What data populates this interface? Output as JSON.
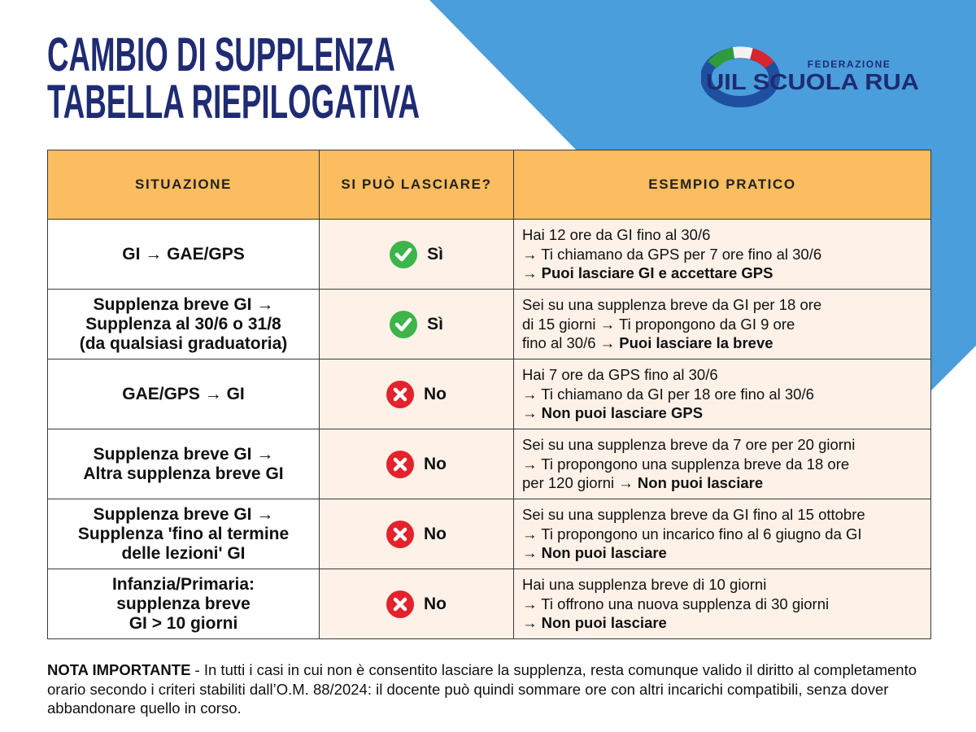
{
  "header": {
    "title": [
      "CAMBIO DI SUPPLENZA",
      "TABELLA RIEPILOGATIVA"
    ],
    "logo": {
      "top": "FEDERAZIONE",
      "name": "UIL SCUOLA RUA"
    }
  },
  "table": {
    "columns": [
      "SITUAZIONE",
      "SI PUÒ LASCIARE?",
      "ESEMPIO PRATICO"
    ],
    "rows": [
      {
        "situation": [
          "GI → GAE/GPS"
        ],
        "allowed": true,
        "answer": "Sì",
        "example": [
          {
            "text": "Hai 12 ore da GI fino al 30/6"
          },
          {
            "text": "→ Ti chiamano da GPS per 7 ore fino al 30/6"
          },
          {
            "text": "→ ",
            "strong": "Puoi lasciare GI e accettare GPS"
          }
        ]
      },
      {
        "situation": [
          "Supplenza breve GI →",
          "Supplenza al 30/6 o 31/8",
          "(da qualsiasi graduatoria)"
        ],
        "allowed": true,
        "answer": "Sì",
        "example": [
          {
            "text": "Sei su una supplenza breve da GI per 18 ore"
          },
          {
            "text": "di 15 giorni → Ti propongono da GI 9 ore"
          },
          {
            "text": "fino al 30/6 → ",
            "strong": "Puoi lasciare la breve"
          }
        ]
      },
      {
        "situation": [
          "GAE/GPS → GI"
        ],
        "allowed": false,
        "answer": "No",
        "example": [
          {
            "text": "Hai 7 ore da GPS fino al 30/6"
          },
          {
            "text": "→ Ti chiamano da GI per 18 ore fino al 30/6"
          },
          {
            "text": "→ ",
            "strong": "Non puoi lasciare GPS"
          }
        ]
      },
      {
        "situation": [
          "Supplenza breve GI →",
          "Altra supplenza breve GI"
        ],
        "allowed": false,
        "answer": "No",
        "example": [
          {
            "text": "Sei su una supplenza breve da 7 ore per 20 giorni"
          },
          {
            "text": "→ Ti propongono una supplenza breve da 18 ore"
          },
          {
            "text": "per 120 giorni → ",
            "strong": "Non puoi lasciare"
          }
        ]
      },
      {
        "situation": [
          "Supplenza breve GI →",
          "Supplenza 'fino al termine",
          "delle lezioni' GI"
        ],
        "allowed": false,
        "answer": "No",
        "example": [
          {
            "text": "Sei su una supplenza breve da GI fino al 15 ottobre"
          },
          {
            "text": "→ Ti propongono un incarico fino al 6 giugno da GI"
          },
          {
            "text": "→ ",
            "strong": "Non puoi lasciare"
          }
        ]
      },
      {
        "situation": [
          "Infanzia/Primaria:",
          "supplenza breve",
          "GI > 10 giorni"
        ],
        "allowed": false,
        "answer": "No",
        "example": [
          {
            "text": "Hai una supplenza breve di 10 giorni"
          },
          {
            "text": "→ Ti offrono una nuova supplenza di 30 giorni"
          },
          {
            "text": "→ ",
            "strong": "Non puoi lasciare"
          }
        ]
      }
    ]
  },
  "note": {
    "label": "NOTA IMPORTANTE",
    "text": " - In tutti i casi in cui non è consentito lasciare la supplenza, resta comunque valido il diritto al completamento orario secondo i criteri stabiliti dall’O.M. 88/2024: il docente può quindi sommare ore con altri incarichi compatibili, senza dover abbandonare quello in corso."
  }
}
